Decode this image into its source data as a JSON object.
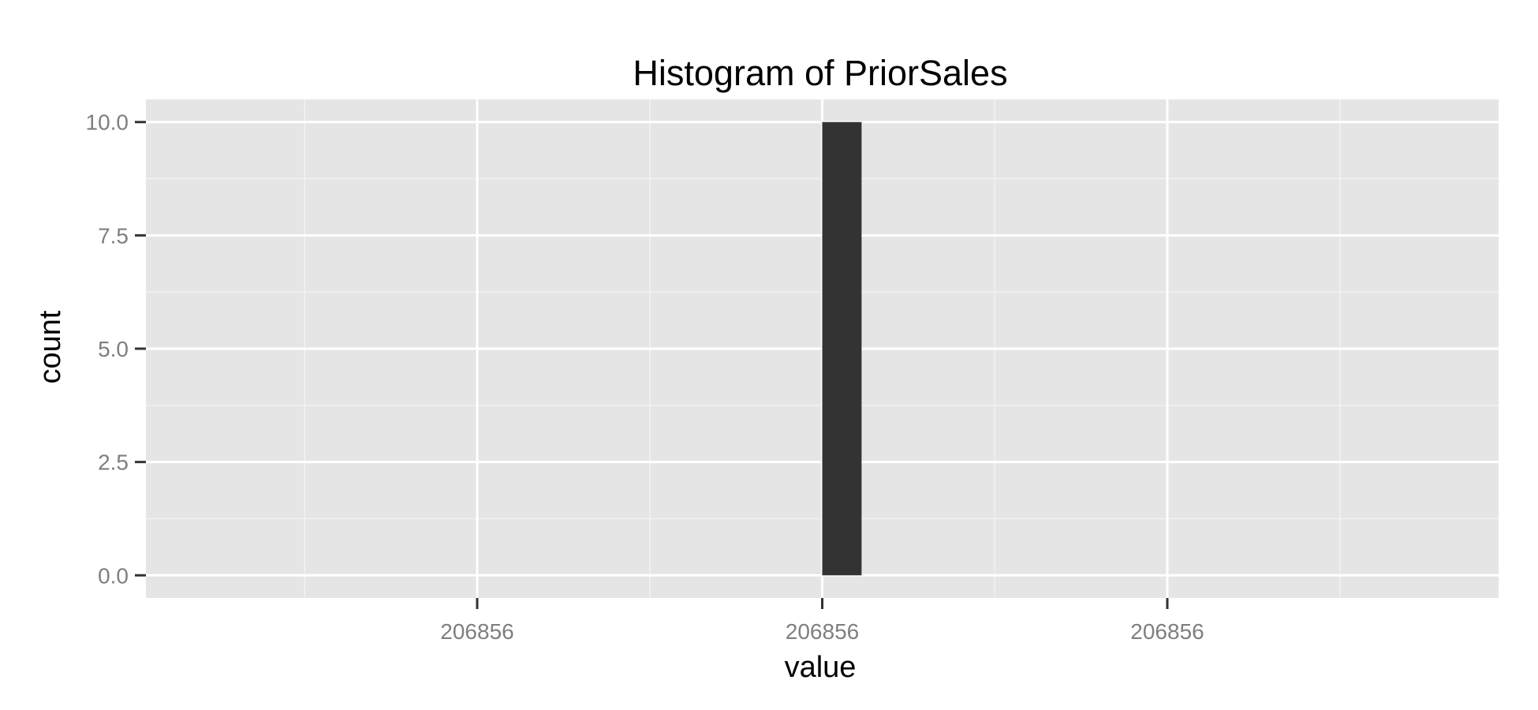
{
  "chart_data": {
    "type": "bar",
    "title": "Histogram of PriorSales",
    "xlabel": "value",
    "ylabel": "count",
    "x_ticks": [
      {
        "pos": -1,
        "label": "206856"
      },
      {
        "pos": 0,
        "label": "206856"
      },
      {
        "pos": 1,
        "label": "206856"
      }
    ],
    "xlim": [
      -1.96,
      1.96
    ],
    "y_ticks": [
      0,
      2.5,
      5.0,
      7.5,
      10.0
    ],
    "ylim": [
      -0.5,
      10.5
    ],
    "bars": [
      {
        "x_start": 0,
        "x_end": 0.114,
        "count": 10
      }
    ],
    "grid": true,
    "colors": {
      "panel": "#e5e5e5",
      "grid": "#ffffff",
      "bar": "#333333",
      "tick_label": "#7f7f7f"
    }
  }
}
